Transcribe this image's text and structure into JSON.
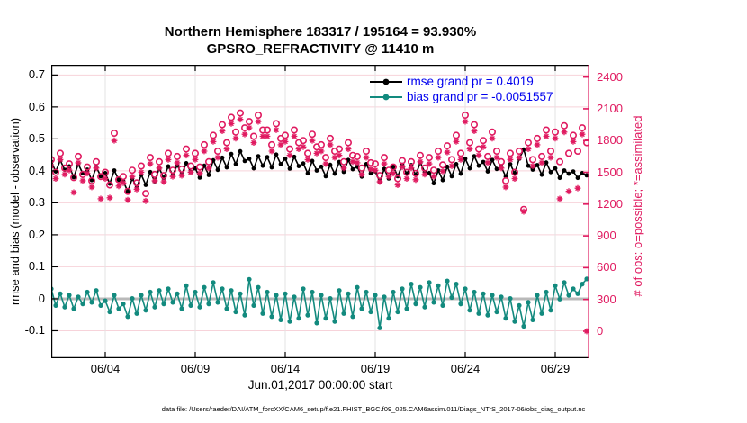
{
  "title": {
    "line1": "Northern Hemisphere 183317 / 195164 = 93.930%",
    "line2": "GPSRO_REFRACTIVITY @ 11410 m"
  },
  "legend": {
    "text_color": "#0000ee",
    "items": [
      {
        "label": "rmse grand pr = 0.4019",
        "marker_color": "#000000"
      },
      {
        "label": "bias grand pr = -0.0051557",
        "marker_color": "#128a7e"
      }
    ]
  },
  "axes": {
    "left": {
      "label": "rmse and bias (model - observation)",
      "tick_labels": [
        "0.7",
        "0.6",
        "0.5",
        "0.4",
        "0.3",
        "0.2",
        "0.1",
        "0",
        "-0.1"
      ],
      "tick_values": [
        0.7,
        0.6,
        0.5,
        0.4,
        0.3,
        0.2,
        0.1,
        0,
        -0.1
      ]
    },
    "right": {
      "label": "# of obs: o=possible; *=assimilated",
      "tick_labels": [
        "2400",
        "2100",
        "1800",
        "1500",
        "1200",
        "900",
        "600",
        "300",
        "0"
      ],
      "tick_values": [
        2400,
        2100,
        1800,
        1500,
        1200,
        900,
        600,
        300,
        0
      ]
    },
    "x": {
      "label": "Jun.01,2017 00:00:00 start",
      "tick_labels": [
        "06/04",
        "06/09",
        "06/14",
        "06/19",
        "06/24",
        "06/29"
      ],
      "tick_days": [
        3,
        8,
        13,
        18,
        23,
        28
      ]
    }
  },
  "footer": "data file: /Users/raeder/DAI/ATM_forcXX/CAM6_setup/f.e21.FHIST_BGC.f09_025.CAM6assim.011/Diags_NTrS_2017-06/obs_diag_output.nc",
  "colors": {
    "crimson": "#e01a60",
    "teal": "#128a7e",
    "black": "#000000",
    "grid_pink": "#f7d3da",
    "grid_gray": "#e3e3e3",
    "zero_line": "#b9b9b9"
  },
  "chart_data": {
    "type": "line",
    "title": "Northern Hemisphere 183317 / 195164 = 93.930% | GPSRO_REFRACTIVITY @ 11410 m",
    "x_unit": "days since 2017-06-01 00:00, 4 samples per day",
    "xlim_days": [
      0,
      29.9
    ],
    "left_ylim": [
      -0.186,
      0.732
    ],
    "right_ylim": [
      -255,
      2516
    ],
    "grid": true,
    "legend_position": "top-right-inside",
    "series": [
      {
        "name": "rmse",
        "axis": "left",
        "style": "line+dot",
        "color": "#000000",
        "values": [
          0.428,
          0.398,
          0.433,
          0.403,
          0.414,
          0.38,
          0.421,
          0.392,
          0.404,
          0.371,
          0.412,
          0.383,
          0.393,
          0.36,
          0.401,
          0.372,
          0.368,
          0.335,
          0.376,
          0.347,
          0.388,
          0.356,
          0.396,
          0.367,
          0.408,
          0.378,
          0.414,
          0.386,
          0.418,
          0.388,
          0.424,
          0.396,
          0.408,
          0.379,
          0.416,
          0.387,
          0.433,
          0.403,
          0.441,
          0.411,
          0.453,
          0.421,
          0.461,
          0.431,
          0.438,
          0.408,
          0.446,
          0.416,
          0.443,
          0.411,
          0.451,
          0.421,
          0.438,
          0.407,
          0.444,
          0.415,
          0.423,
          0.392,
          0.431,
          0.401,
          0.413,
          0.383,
          0.419,
          0.391,
          0.428,
          0.397,
          0.434,
          0.405,
          0.413,
          0.382,
          0.421,
          0.392,
          0.398,
          0.366,
          0.406,
          0.376,
          0.413,
          0.383,
          0.419,
          0.391,
          0.418,
          0.387,
          0.426,
          0.396,
          0.393,
          0.361,
          0.401,
          0.371,
          0.413,
          0.383,
          0.421,
          0.391,
          0.438,
          0.408,
          0.446,
          0.416,
          0.428,
          0.398,
          0.434,
          0.406,
          0.413,
          0.382,
          0.421,
          0.392,
          0.438,
          0.467,
          0.416,
          0.404,
          0.418,
          0.388,
          0.426,
          0.396,
          0.408,
          0.378,
          0.401,
          0.391,
          0.398,
          0.378,
          0.393,
          0.386
        ]
      },
      {
        "name": "bias",
        "axis": "left",
        "style": "line+dot",
        "color": "#128a7e",
        "values": [
          0.031,
          -0.021,
          0.016,
          -0.026,
          0.011,
          -0.031,
          0.006,
          -0.016,
          0.021,
          -0.011,
          0.026,
          -0.021,
          -0.006,
          -0.041,
          0.011,
          -0.031,
          -0.016,
          -0.056,
          0.001,
          -0.046,
          0.011,
          -0.036,
          0.021,
          -0.026,
          0.026,
          -0.016,
          0.031,
          -0.011,
          0.016,
          -0.031,
          0.041,
          -0.021,
          0.021,
          -0.026,
          0.036,
          -0.016,
          0.051,
          -0.011,
          0.031,
          -0.031,
          0.026,
          -0.041,
          0.016,
          -0.051,
          0.061,
          -0.021,
          0.036,
          -0.046,
          0.021,
          -0.056,
          0.011,
          -0.066,
          0.016,
          -0.071,
          0.006,
          -0.061,
          0.031,
          -0.051,
          0.021,
          -0.076,
          0.011,
          -0.061,
          0.001,
          -0.071,
          0.026,
          -0.046,
          0.016,
          -0.056,
          0.036,
          -0.031,
          0.021,
          -0.041,
          0.011,
          -0.091,
          0.006,
          -0.061,
          0.021,
          -0.041,
          0.031,
          -0.031,
          0.046,
          -0.016,
          0.036,
          -0.026,
          0.051,
          -0.011,
          0.041,
          -0.021,
          0.056,
          0.004,
          0.046,
          -0.016,
          0.031,
          -0.036,
          0.021,
          -0.046,
          0.016,
          -0.051,
          0.011,
          -0.041,
          0.006,
          -0.061,
          0.001,
          -0.071,
          -0.021,
          -0.086,
          -0.011,
          -0.066,
          0.011,
          -0.046,
          0.021,
          -0.036,
          0.041,
          -0.001,
          0.051,
          0.011,
          0.031,
          0.016,
          0.046,
          0.062
        ]
      },
      {
        "name": "possible",
        "axis": "right",
        "style": "open-circle",
        "color": "#e01a60",
        "values": [
          1620,
          1500,
          1680,
          1540,
          1580,
          1450,
          1650,
          1480,
          1550,
          1420,
          1600,
          1460,
          1500,
          1380,
          1870,
          1430,
          1460,
          1320,
          1520,
          1400,
          1560,
          1300,
          1640,
          1480,
          1600,
          1470,
          1680,
          1520,
          1650,
          1530,
          1720,
          1560,
          1680,
          1550,
          1760,
          1600,
          1850,
          1700,
          1950,
          1780,
          2020,
          1880,
          2060,
          1920,
          1980,
          1840,
          2040,
          1900,
          1900,
          1760,
          1960,
          1820,
          1850,
          1720,
          1900,
          1780,
          1800,
          1680,
          1860,
          1740,
          1760,
          1640,
          1820,
          1700,
          1720,
          1600,
          1780,
          1660,
          1650,
          1540,
          1700,
          1590,
          1580,
          1470,
          1640,
          1520,
          1550,
          1440,
          1610,
          1500,
          1600,
          1490,
          1660,
          1540,
          1640,
          1520,
          1700,
          1570,
          1750,
          1620,
          1850,
          1680,
          2040,
          1780,
          1950,
          1720,
          1800,
          1650,
          1880,
          1700,
          1600,
          1420,
          1680,
          1500,
          1700,
          1150,
          1780,
          1620,
          1820,
          1650,
          1900,
          1700,
          1880,
          1600,
          1940,
          1680,
          1850,
          1700,
          1920,
          1780
        ]
      },
      {
        "name": "assimilated",
        "axis": "right",
        "style": "asterisk",
        "color": "#e01a60",
        "values": [
          1560,
          1440,
          1620,
          1480,
          1520,
          1310,
          1590,
          1420,
          1490,
          1360,
          1540,
          1250,
          1440,
          1260,
          1800,
          1370,
          1400,
          1240,
          1460,
          1340,
          1500,
          1230,
          1580,
          1420,
          1540,
          1410,
          1620,
          1460,
          1590,
          1470,
          1660,
          1500,
          1620,
          1490,
          1700,
          1540,
          1790,
          1640,
          1890,
          1720,
          1960,
          1820,
          2000,
          1860,
          1920,
          1780,
          1980,
          1840,
          1840,
          1700,
          1900,
          1760,
          1790,
          1660,
          1840,
          1720,
          1740,
          1620,
          1800,
          1680,
          1700,
          1580,
          1760,
          1640,
          1660,
          1540,
          1720,
          1600,
          1590,
          1480,
          1640,
          1530,
          1520,
          1410,
          1580,
          1460,
          1490,
          1380,
          1550,
          1440,
          1540,
          1430,
          1600,
          1480,
          1580,
          1460,
          1640,
          1510,
          1690,
          1560,
          1790,
          1620,
          1980,
          1720,
          1890,
          1660,
          1740,
          1590,
          1820,
          1640,
          1540,
          1360,
          1620,
          1440,
          1640,
          1130,
          1720,
          1560,
          1760,
          1590,
          1840,
          1640,
          1820,
          1250,
          1880,
          1320,
          1790,
          1350,
          1860,
          0
        ]
      }
    ]
  }
}
